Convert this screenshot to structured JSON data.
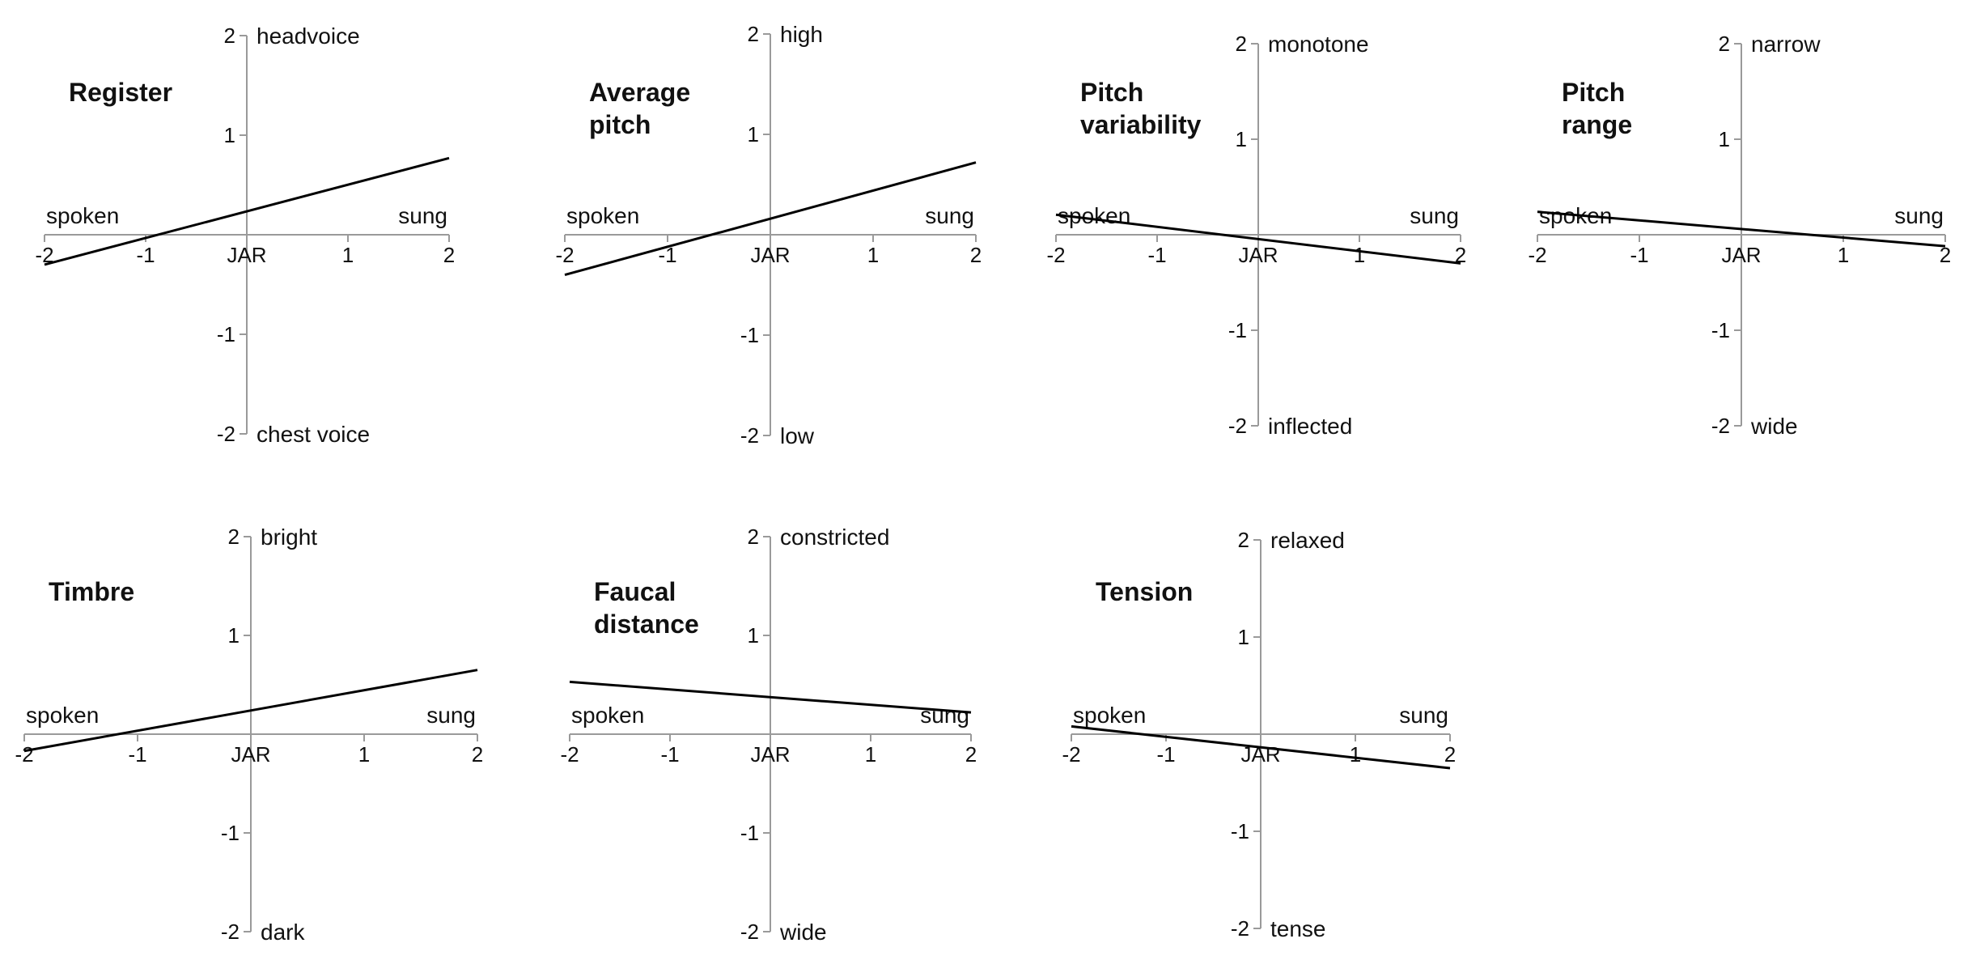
{
  "chart_data": [
    {
      "type": "line",
      "title": [
        "Register"
      ],
      "x_tick_labels": [
        "-2",
        "-1",
        "JAR",
        "1",
        "2"
      ],
      "y_tick_labels": [
        "2",
        "1",
        "-1",
        "-2"
      ],
      "xlim": [
        -2,
        2
      ],
      "ylim": [
        -2,
        2
      ],
      "x_left_label": "spoken",
      "x_right_label": "sung",
      "y_top_label": "headvoice",
      "y_bottom_label": "chest voice",
      "x": [
        -2,
        2
      ],
      "y": [
        -0.3,
        0.77
      ]
    },
    {
      "type": "line",
      "title": [
        "Average",
        "pitch"
      ],
      "x_tick_labels": [
        "-2",
        "-1",
        "JAR",
        "1",
        "2"
      ],
      "y_tick_labels": [
        "2",
        "1",
        "-1",
        "-2"
      ],
      "xlim": [
        -2,
        2
      ],
      "ylim": [
        -2,
        2
      ],
      "x_left_label": "spoken",
      "x_right_label": "sung",
      "y_top_label": "high",
      "y_bottom_label": "low",
      "x": [
        -2,
        2
      ],
      "y": [
        -0.4,
        0.72
      ]
    },
    {
      "type": "line",
      "title": [
        "Pitch",
        "variability"
      ],
      "x_tick_labels": [
        "-2",
        "-1",
        "JAR",
        "1",
        "2"
      ],
      "y_tick_labels": [
        "2",
        "1",
        "-1",
        "-2"
      ],
      "xlim": [
        -2,
        2
      ],
      "ylim": [
        -2,
        2
      ],
      "x_left_label": "spoken",
      "x_right_label": "sung",
      "y_top_label": "monotone",
      "y_bottom_label": "inflected",
      "x": [
        -2,
        2
      ],
      "y": [
        0.21,
        -0.3
      ]
    },
    {
      "type": "line",
      "title": [
        "Pitch",
        "range"
      ],
      "x_tick_labels": [
        "-2",
        "-1",
        "JAR",
        "1",
        "2"
      ],
      "y_tick_labels": [
        "2",
        "1",
        "-1",
        "-2"
      ],
      "xlim": [
        -2,
        2
      ],
      "ylim": [
        -2,
        2
      ],
      "x_left_label": "spoken",
      "x_right_label": "sung",
      "y_top_label": "narrow",
      "y_bottom_label": "wide",
      "x": [
        -2,
        2
      ],
      "y": [
        0.24,
        -0.12
      ]
    },
    {
      "type": "line",
      "title": [
        "Timbre"
      ],
      "x_tick_labels": [
        "-2",
        "-1",
        "JAR",
        "1",
        "2"
      ],
      "y_tick_labels": [
        "2",
        "1",
        "-1",
        "-2"
      ],
      "xlim": [
        -2,
        2
      ],
      "ylim": [
        -2,
        2
      ],
      "x_left_label": "spoken",
      "x_right_label": "sung",
      "y_top_label": "bright",
      "y_bottom_label": "dark",
      "x": [
        -2,
        2
      ],
      "y": [
        -0.17,
        0.65
      ]
    },
    {
      "type": "line",
      "title": [
        "Faucal",
        "distance"
      ],
      "x_tick_labels": [
        "-2",
        "-1",
        "JAR",
        "1",
        "2"
      ],
      "y_tick_labels": [
        "2",
        "1",
        "-1",
        "-2"
      ],
      "xlim": [
        -2,
        2
      ],
      "ylim": [
        -2,
        2
      ],
      "x_left_label": "spoken",
      "x_right_label": "sung",
      "y_top_label": "constricted",
      "y_bottom_label": "wide",
      "x": [
        -2,
        2
      ],
      "y": [
        0.53,
        0.22
      ]
    },
    {
      "type": "line",
      "title": [
        "Tension"
      ],
      "x_tick_labels": [
        "-2",
        "-1",
        "JAR",
        "1",
        "2"
      ],
      "y_tick_labels": [
        "2",
        "1",
        "-1",
        "-2"
      ],
      "xlim": [
        -2,
        2
      ],
      "ylim": [
        -2,
        2
      ],
      "x_left_label": "spoken",
      "x_right_label": "sung",
      "y_top_label": "relaxed",
      "y_bottom_label": "tense",
      "x": [
        -2,
        2
      ],
      "y": [
        0.08,
        -0.35
      ]
    }
  ]
}
